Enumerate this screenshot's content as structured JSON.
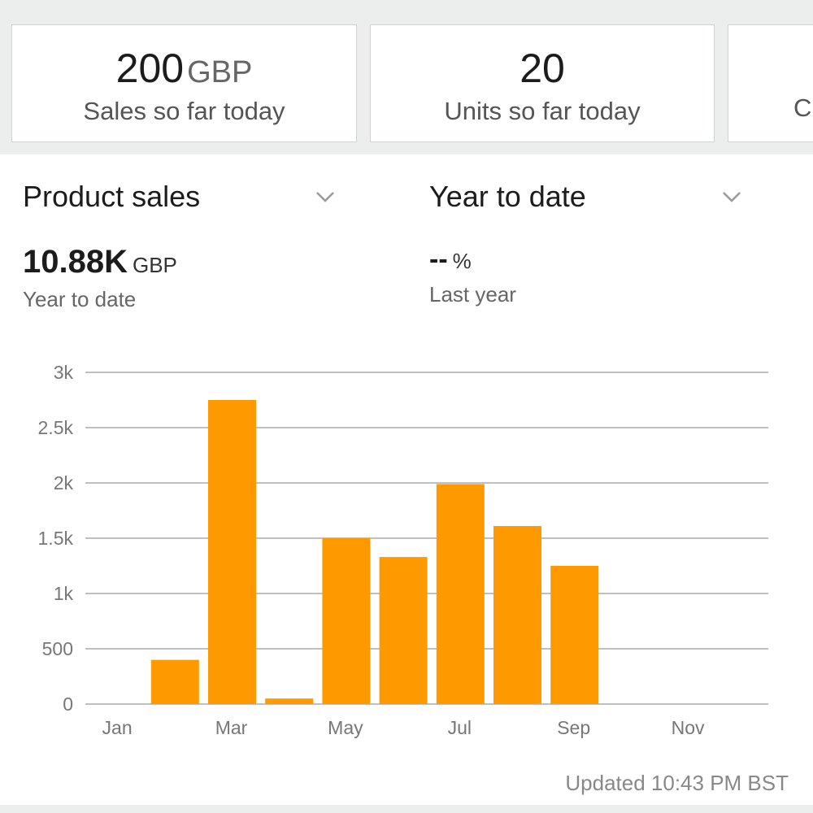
{
  "summary_cards": [
    {
      "value": "200",
      "unit": "GBP",
      "label": "Sales so far today"
    },
    {
      "value": "20",
      "unit": "",
      "label": "Units so far today"
    },
    {
      "value": "",
      "unit": "",
      "label": "C"
    }
  ],
  "filters": {
    "metric": "Product sales",
    "range": "Year to date"
  },
  "stats": {
    "ytd_value": "10.88K",
    "ytd_unit": "GBP",
    "ytd_label": "Year to date",
    "last_value": "--",
    "last_unit": "%",
    "last_label": "Last year"
  },
  "colors": {
    "bar": "#ff9900",
    "grid": "#9a9a9a"
  },
  "chart_data": {
    "type": "bar",
    "categories": [
      "Jan",
      "Feb",
      "Mar",
      "Apr",
      "May",
      "Jun",
      "Jul",
      "Aug",
      "Sep",
      "Oct",
      "Nov",
      "Dec"
    ],
    "values": [
      0,
      400,
      2750,
      50,
      1500,
      1330,
      1990,
      1610,
      1250,
      0,
      0,
      0
    ],
    "x_tick_labels": [
      "Jan",
      "Mar",
      "May",
      "Jul",
      "Sep",
      "Nov"
    ],
    "y_tick_labels": [
      "0",
      "500",
      "1k",
      "1.5k",
      "2k",
      "2.5k",
      "3k"
    ],
    "ylim": [
      0,
      3000
    ],
    "grid": true
  },
  "updated_text": "Updated 10:43 PM BST"
}
